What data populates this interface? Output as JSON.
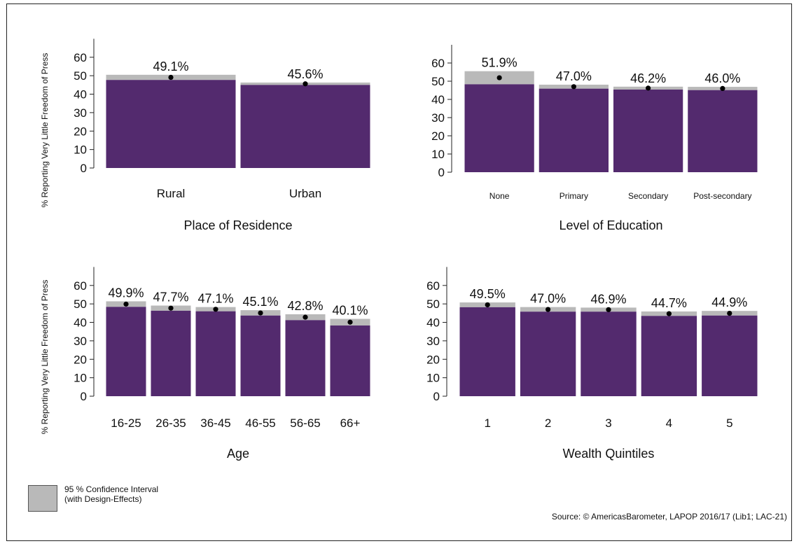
{
  "y_axis_label": "% Reporting Very Little Freedom of Press",
  "legend": {
    "label_line1": "95 % Confidence Interval",
    "label_line2": "(with Design-Effects)",
    "swatch_color": "#b9b9b9"
  },
  "source": "Source: © AmericasBarometer, LAPOP 2016/17 (Lib1; LAC-21)",
  "colors": {
    "bar": "#532a6e",
    "ci": "#b9b9b9",
    "point": "#000000"
  },
  "chart_data": [
    {
      "type": "bar",
      "xlabel": "Place of Residence",
      "ylabel": "% Reporting Very Little Freedom of Press",
      "categories": [
        "Rural",
        "Urban"
      ],
      "values": [
        49.1,
        45.6
      ],
      "value_labels": [
        "49.1%",
        "45.6%"
      ],
      "ci_low": [
        47.7,
        45.0
      ],
      "ci_high": [
        50.5,
        46.3
      ],
      "yticks": [
        0,
        10,
        20,
        30,
        40,
        50,
        60
      ],
      "ylim": [
        0,
        70
      ]
    },
    {
      "type": "bar",
      "xlabel": "Level of Education",
      "ylabel": "",
      "categories": [
        "None",
        "Primary",
        "Secondary",
        "Post-secondary"
      ],
      "values": [
        51.9,
        47.0,
        46.2,
        46.0
      ],
      "value_labels": [
        "51.9%",
        "47.0%",
        "46.2%",
        "46.0%"
      ],
      "ci_low": [
        48.3,
        45.9,
        45.4,
        45.1
      ],
      "ci_high": [
        55.5,
        48.1,
        47.0,
        46.9
      ],
      "yticks": [
        0,
        10,
        20,
        30,
        40,
        50,
        60
      ],
      "ylim": [
        0,
        70
      ]
    },
    {
      "type": "bar",
      "xlabel": "Age",
      "ylabel": "% Reporting Very Little Freedom of Press",
      "categories": [
        "16-25",
        "26-35",
        "36-45",
        "46-55",
        "56-65",
        "66+"
      ],
      "values": [
        49.9,
        47.7,
        47.1,
        45.1,
        42.8,
        40.1
      ],
      "value_labels": [
        "49.9%",
        "47.7%",
        "47.1%",
        "45.1%",
        "42.8%",
        "40.1%"
      ],
      "ci_low": [
        48.4,
        46.3,
        46.0,
        43.7,
        41.2,
        38.3
      ],
      "ci_high": [
        51.4,
        49.1,
        48.3,
        46.6,
        44.4,
        41.9
      ],
      "yticks": [
        0,
        10,
        20,
        30,
        40,
        50,
        60
      ],
      "ylim": [
        0,
        70
      ]
    },
    {
      "type": "bar",
      "xlabel": "Wealth Quintiles",
      "ylabel": "",
      "categories": [
        "1",
        "2",
        "3",
        "4",
        "5"
      ],
      "values": [
        49.5,
        47.0,
        46.9,
        44.7,
        44.9
      ],
      "value_labels": [
        "49.5%",
        "47.0%",
        "46.9%",
        "44.7%",
        "44.9%"
      ],
      "ci_low": [
        48.2,
        45.8,
        45.8,
        43.5,
        43.7
      ],
      "ci_high": [
        50.8,
        48.3,
        48.0,
        45.9,
        46.2
      ],
      "yticks": [
        0,
        10,
        20,
        30,
        40,
        50,
        60
      ],
      "ylim": [
        0,
        70
      ]
    }
  ]
}
